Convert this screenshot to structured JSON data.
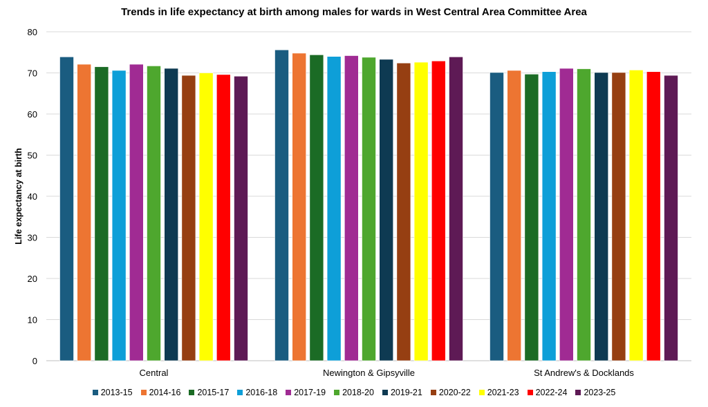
{
  "chart_data": {
    "type": "bar",
    "title": "Trends in life expectancy at birth among males for wards in West Central Area Committee Area",
    "xlabel": "",
    "ylabel": "Life expectancy at birth",
    "ylim": [
      0,
      80
    ],
    "yticks": [
      "0",
      "10",
      "20",
      "30",
      "40",
      "50",
      "60",
      "70",
      "80"
    ],
    "grid": true,
    "legend_position": "bottom",
    "categories": [
      "Central",
      "Newington & Gipsyville",
      "St Andrew's & Docklands"
    ],
    "series": [
      {
        "name": "2013-15",
        "color": "#1a5c80",
        "values": [
          73.9,
          75.6,
          70.1
        ]
      },
      {
        "name": "2014-16",
        "color": "#ed7532",
        "values": [
          72.1,
          74.8,
          70.6
        ]
      },
      {
        "name": "2015-17",
        "color": "#1b6b25",
        "values": [
          71.5,
          74.4,
          69.7
        ]
      },
      {
        "name": "2016-18",
        "color": "#0e9fd8",
        "values": [
          70.6,
          74.0,
          70.3
        ]
      },
      {
        "name": "2017-19",
        "color": "#a02b93",
        "values": [
          72.1,
          74.2,
          71.1
        ]
      },
      {
        "name": "2018-20",
        "color": "#4ea72e",
        "values": [
          71.7,
          73.8,
          71.0
        ]
      },
      {
        "name": "2019-21",
        "color": "#0e3a52",
        "values": [
          71.1,
          73.3,
          70.1
        ]
      },
      {
        "name": "2020-22",
        "color": "#963f12",
        "values": [
          69.4,
          72.4,
          70.1
        ]
      },
      {
        "name": "2021-23",
        "color": "#ffff00",
        "values": [
          70.0,
          72.6,
          70.7
        ]
      },
      {
        "name": "2022-24",
        "color": "#ff0000",
        "values": [
          69.6,
          72.9,
          70.3
        ]
      },
      {
        "name": "2023-25",
        "color": "#5e1a55",
        "values": [
          69.2,
          73.9,
          69.4
        ]
      }
    ]
  }
}
